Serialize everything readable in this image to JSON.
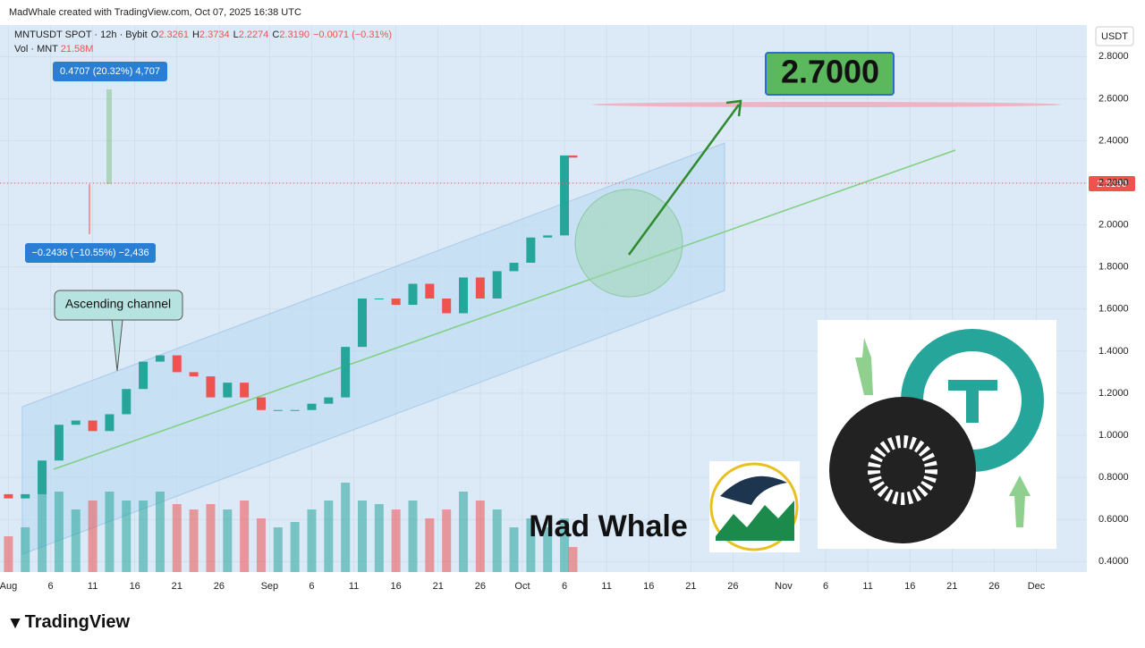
{
  "header": {
    "credit": "MadWhale created with TradingView.com, Oct 07, 2025 16:38 UTC",
    "symbol": "MNTUSDT SPOT · 12h · Bybit",
    "ohlc": [
      {
        "label": "O",
        "value": "2.3261"
      },
      {
        "label": "H",
        "value": "2.3734"
      },
      {
        "label": "L",
        "value": "2.2274"
      },
      {
        "label": "C",
        "value": "2.3190"
      }
    ],
    "change": "−0.0071 (−0.31%)",
    "volume_label": "Vol · MNT",
    "volume_value": "21.58M",
    "currency": "USDT",
    "last_price": "2.3190"
  },
  "annotations": {
    "measure_up": "0.4707 (20.32%) 4,707",
    "measure_down": "−0.2436 (−10.55%) −2,436",
    "channel": "Ascending channel",
    "target": "2.7000",
    "watermark": "Mad Whale",
    "brand": "TradingView"
  },
  "chart_data": {
    "type": "candlestick",
    "x": [
      "2025-08-01",
      "2025-08-03",
      "2025-08-05",
      "2025-08-07",
      "2025-08-09",
      "2025-08-11",
      "2025-08-13",
      "2025-08-15",
      "2025-08-17",
      "2025-08-19",
      "2025-08-21",
      "2025-08-23",
      "2025-08-25",
      "2025-08-27",
      "2025-08-29",
      "2025-08-31",
      "2025-09-02",
      "2025-09-04",
      "2025-09-06",
      "2025-09-08",
      "2025-09-10",
      "2025-09-12",
      "2025-09-14",
      "2025-09-16",
      "2025-09-18",
      "2025-09-20",
      "2025-09-22",
      "2025-09-24",
      "2025-09-26",
      "2025-09-28",
      "2025-09-30",
      "2025-10-02",
      "2025-10-04",
      "2025-10-06",
      "2025-10-07"
    ],
    "open": [
      0.72,
      0.7,
      0.72,
      0.88,
      1.05,
      1.07,
      1.02,
      1.1,
      1.22,
      1.35,
      1.38,
      1.3,
      1.28,
      1.18,
      1.25,
      1.18,
      1.12,
      1.12,
      1.12,
      1.15,
      1.18,
      1.42,
      1.65,
      1.65,
      1.62,
      1.72,
      1.65,
      1.58,
      1.75,
      1.65,
      1.78,
      1.82,
      1.94,
      1.95,
      2.33
    ],
    "close": [
      0.7,
      0.72,
      0.88,
      1.05,
      1.07,
      1.02,
      1.1,
      1.22,
      1.35,
      1.38,
      1.3,
      1.28,
      1.18,
      1.25,
      1.18,
      1.12,
      1.12,
      1.12,
      1.15,
      1.18,
      1.42,
      1.65,
      1.65,
      1.62,
      1.72,
      1.65,
      1.58,
      1.75,
      1.65,
      1.78,
      1.82,
      1.94,
      1.95,
      2.33,
      2.32
    ],
    "volume": [
      20,
      25,
      60,
      45,
      35,
      40,
      45,
      40,
      40,
      45,
      38,
      35,
      38,
      35,
      40,
      30,
      25,
      28,
      35,
      40,
      50,
      40,
      38,
      35,
      40,
      30,
      35,
      45,
      40,
      35,
      25,
      30,
      25,
      30,
      14
    ],
    "colors": {
      "up": "#26a69a",
      "down": "#ef5350"
    },
    "xlim": [
      "2025-07-31",
      "2025-12-07"
    ],
    "xticks": [
      {
        "value": "2025-08-01",
        "label": "Aug"
      },
      {
        "value": "2025-08-06",
        "label": "6"
      },
      {
        "value": "2025-08-11",
        "label": "11"
      },
      {
        "value": "2025-08-16",
        "label": "16"
      },
      {
        "value": "2025-08-21",
        "label": "21"
      },
      {
        "value": "2025-08-26",
        "label": "26"
      },
      {
        "value": "2025-09-01",
        "label": "Sep"
      },
      {
        "value": "2025-09-06",
        "label": "6"
      },
      {
        "value": "2025-09-11",
        "label": "11"
      },
      {
        "value": "2025-09-16",
        "label": "16"
      },
      {
        "value": "2025-09-21",
        "label": "21"
      },
      {
        "value": "2025-09-26",
        "label": "26"
      },
      {
        "value": "2025-10-01",
        "label": "Oct"
      },
      {
        "value": "2025-10-06",
        "label": "6"
      },
      {
        "value": "2025-10-11",
        "label": "11"
      },
      {
        "value": "2025-10-16",
        "label": "16"
      },
      {
        "value": "2025-10-21",
        "label": "21"
      },
      {
        "value": "2025-10-26",
        "label": "26"
      },
      {
        "value": "2025-11-01",
        "label": "Nov"
      },
      {
        "value": "2025-11-06",
        "label": "6"
      },
      {
        "value": "2025-11-11",
        "label": "11"
      },
      {
        "value": "2025-11-16",
        "label": "16"
      },
      {
        "value": "2025-11-21",
        "label": "21"
      },
      {
        "value": "2025-11-26",
        "label": "26"
      },
      {
        "value": "2025-12-01",
        "label": "Dec"
      }
    ],
    "ylim": [
      0.35,
      2.95
    ],
    "yticks": [
      {
        "value": 0.4,
        "label": "0.4000"
      },
      {
        "value": 0.6,
        "label": "0.6000"
      },
      {
        "value": 0.8,
        "label": "0.8000"
      },
      {
        "value": 1.0,
        "label": "1.0000"
      },
      {
        "value": 1.2,
        "label": "1.2000"
      },
      {
        "value": 1.4,
        "label": "1.4000"
      },
      {
        "value": 1.6,
        "label": "1.6000"
      },
      {
        "value": 1.8,
        "label": "1.8000"
      },
      {
        "value": 2.0,
        "label": "2.0000"
      },
      {
        "value": 2.2,
        "label": "2.2000"
      },
      {
        "value": 2.4,
        "label": "2.4000"
      },
      {
        "value": 2.6,
        "label": "2.6000"
      },
      {
        "value": 2.8,
        "label": "2.8000"
      }
    ]
  }
}
